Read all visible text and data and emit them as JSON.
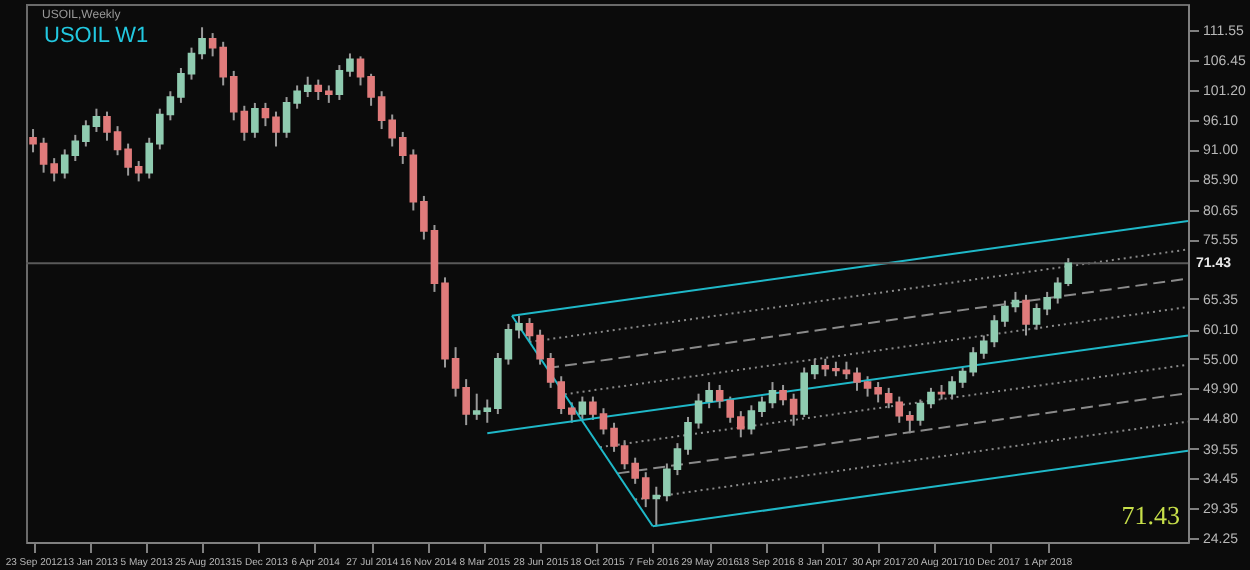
{
  "chart_data": {
    "type": "candlestick",
    "title": "USOIL W1",
    "subtitle": "USOIL,Weekly",
    "annotations": [
      "71.43"
    ],
    "x": [
      "2012-09-23",
      "2012-10-14",
      "2012-11-04",
      "2012-11-25",
      "2012-12-16",
      "2013-01-06",
      "2013-01-27",
      "2013-02-17",
      "2013-03-10",
      "2013-03-31",
      "2013-04-21",
      "2013-05-12",
      "2013-06-02",
      "2013-06-23",
      "2013-07-14",
      "2013-08-04",
      "2013-08-25",
      "2013-09-15",
      "2013-10-06",
      "2013-10-27",
      "2013-11-17",
      "2013-12-08",
      "2013-12-29",
      "2014-01-19",
      "2014-02-09",
      "2014-03-02",
      "2014-03-23",
      "2014-04-13",
      "2014-05-04",
      "2014-05-25",
      "2014-06-15",
      "2014-07-06",
      "2014-07-27",
      "2014-08-17",
      "2014-09-07",
      "2014-09-28",
      "2014-10-19",
      "2014-11-09",
      "2014-11-30",
      "2014-12-21",
      "2015-01-11",
      "2015-02-01",
      "2015-02-22",
      "2015-03-15",
      "2015-04-05",
      "2015-04-26",
      "2015-05-17",
      "2015-06-07",
      "2015-06-28",
      "2015-07-19",
      "2015-08-09",
      "2015-08-30",
      "2015-09-20",
      "2015-10-11",
      "2015-11-01",
      "2015-11-22",
      "2015-12-13",
      "2016-01-03",
      "2016-01-24",
      "2016-02-14",
      "2016-03-06",
      "2016-03-27",
      "2016-04-17",
      "2016-05-08",
      "2016-05-29",
      "2016-06-19",
      "2016-07-10",
      "2016-07-31",
      "2016-08-21",
      "2016-09-11",
      "2016-10-02",
      "2016-10-23",
      "2016-11-13",
      "2016-12-04",
      "2016-12-25",
      "2017-01-15",
      "2017-02-05",
      "2017-02-26",
      "2017-03-19",
      "2017-04-09",
      "2017-04-30",
      "2017-05-21",
      "2017-06-11",
      "2017-07-02",
      "2017-07-23",
      "2017-08-13",
      "2017-09-03",
      "2017-09-24",
      "2017-10-15",
      "2017-11-05",
      "2017-11-26",
      "2017-12-17",
      "2018-01-07",
      "2018-01-28",
      "2018-02-18",
      "2018-03-11",
      "2018-04-01",
      "2018-04-22",
      "2018-05-13"
    ],
    "ohlc": [
      [
        93,
        94.5,
        90.5,
        92
      ],
      [
        92,
        93,
        87,
        88.5
      ],
      [
        88.5,
        89.5,
        85.5,
        87
      ],
      [
        87,
        91,
        86,
        90
      ],
      [
        90,
        93.5,
        89,
        92.4
      ],
      [
        92.4,
        96,
        91.5,
        95
      ],
      [
        95,
        98,
        94,
        96.6
      ],
      [
        96.6,
        97.5,
        92.5,
        94
      ],
      [
        94,
        95,
        90,
        91
      ],
      [
        91,
        92,
        86.5,
        88
      ],
      [
        88,
        89,
        85.5,
        87
      ],
      [
        87,
        93,
        86,
        92
      ],
      [
        92,
        98,
        91,
        97
      ],
      [
        97,
        101,
        96,
        100
      ],
      [
        100,
        105,
        99,
        104
      ],
      [
        104,
        108.5,
        103,
        107.5
      ],
      [
        107.5,
        112,
        106.5,
        110
      ],
      [
        110,
        111,
        107,
        108.5
      ],
      [
        108.5,
        109.5,
        102,
        103.5
      ],
      [
        103.5,
        104.5,
        96,
        97.5
      ],
      [
        97.5,
        98.5,
        92.5,
        94
      ],
      [
        94,
        99,
        93,
        98
      ],
      [
        98,
        99,
        95,
        96.5
      ],
      [
        96.5,
        97.5,
        91.5,
        94
      ],
      [
        94,
        100,
        93,
        99
      ],
      [
        99,
        102,
        98,
        101
      ],
      [
        101,
        103.5,
        100,
        102
      ],
      [
        102,
        103,
        99.5,
        101
      ],
      [
        101,
        102,
        99,
        100.5
      ],
      [
        100.5,
        105.5,
        99.5,
        104.5
      ],
      [
        104.5,
        107.5,
        103.5,
        106.5
      ],
      [
        106.5,
        107,
        102,
        103.5
      ],
      [
        103.5,
        104,
        98.5,
        100
      ],
      [
        100,
        101,
        94.5,
        96
      ],
      [
        96,
        97,
        91.5,
        93
      ],
      [
        93,
        94,
        88.5,
        90
      ],
      [
        90,
        91,
        80.5,
        82
      ],
      [
        82,
        83,
        75.5,
        77
      ],
      [
        77,
        78,
        66.5,
        68
      ],
      [
        68,
        69,
        53.5,
        55
      ],
      [
        55,
        57,
        48.5,
        50
      ],
      [
        50,
        51.5,
        43.6,
        45.5
      ],
      [
        45.5,
        49,
        44.5,
        46
      ],
      [
        46,
        48,
        44,
        46.5
      ],
      [
        46.5,
        56,
        45.5,
        55
      ],
      [
        55,
        61,
        54,
        60
      ],
      [
        60,
        62.4,
        58.5,
        61
      ],
      [
        61,
        62,
        58,
        59
      ],
      [
        59,
        60,
        54,
        55
      ],
      [
        55,
        56,
        50,
        51
      ],
      [
        51,
        52,
        45.5,
        46.5
      ],
      [
        46.5,
        47.5,
        44,
        45.5
      ],
      [
        45.5,
        48.5,
        44.5,
        47.5
      ],
      [
        47.5,
        48.5,
        44.5,
        45.5
      ],
      [
        45.5,
        46.5,
        42,
        43
      ],
      [
        43,
        44,
        39,
        40
      ],
      [
        40,
        41,
        36,
        37
      ],
      [
        37,
        38,
        33.5,
        34.5
      ],
      [
        34.5,
        35.5,
        29.5,
        31
      ],
      [
        31,
        33,
        26.2,
        31.5
      ],
      [
        31.5,
        37,
        30.5,
        36
      ],
      [
        36,
        40.5,
        35,
        39.5
      ],
      [
        39.5,
        45,
        38.5,
        44
      ],
      [
        44,
        49,
        43,
        47.7
      ],
      [
        47.7,
        51,
        46.5,
        49.5
      ],
      [
        49.5,
        50.5,
        46.5,
        47.8
      ],
      [
        47.8,
        48.5,
        44,
        45
      ],
      [
        45,
        46,
        41.5,
        43
      ],
      [
        43,
        47,
        42,
        46
      ],
      [
        46,
        48.5,
        45,
        47.5
      ],
      [
        47.5,
        51,
        46.5,
        49.5
      ],
      [
        49.5,
        50.5,
        47,
        48
      ],
      [
        48,
        49,
        43.5,
        45.5
      ],
      [
        45.5,
        53.5,
        45,
        52.5
      ],
      [
        52.5,
        55,
        51.5,
        53.8
      ],
      [
        53.8,
        55,
        52,
        53.3
      ],
      [
        53.3,
        54.5,
        52,
        53
      ],
      [
        53,
        54.5,
        51.5,
        52.5
      ],
      [
        52.5,
        53.5,
        49.5,
        51
      ],
      [
        51,
        52,
        48.5,
        50
      ],
      [
        50,
        51,
        47.5,
        49
      ],
      [
        49,
        50,
        46.5,
        47.5
      ],
      [
        47.5,
        48.5,
        44,
        45.2
      ],
      [
        45.2,
        46,
        42.2,
        44.5
      ],
      [
        44.5,
        48,
        43.5,
        47.3
      ],
      [
        47.3,
        50,
        46.5,
        49.2
      ],
      [
        49.2,
        50.5,
        48,
        49
      ],
      [
        49,
        52,
        48,
        51
      ],
      [
        51,
        53.5,
        50,
        52.8
      ],
      [
        52.8,
        57,
        52,
        56
      ],
      [
        56,
        59,
        55,
        58
      ],
      [
        58,
        62.5,
        57,
        61.5
      ],
      [
        61.5,
        65,
        60.5,
        64
      ],
      [
        64,
        66.5,
        63,
        65
      ],
      [
        65,
        66,
        59,
        61
      ],
      [
        61,
        64.5,
        60,
        63.6
      ],
      [
        63.6,
        66.5,
        62.5,
        65.5
      ],
      [
        65.5,
        69,
        64.5,
        68
      ],
      [
        68,
        72.3,
        67.5,
        71.43
      ]
    ],
    "series": [
      {
        "type": "line",
        "color": "#1fb8c8",
        "line_style": "solid",
        "x": [
          "2015-05-03",
          "2019-01-06"
        ],
        "values": [
          62.4,
          78.7
        ]
      },
      {
        "type": "line",
        "color": "#8a8a8a",
        "line_style": "dotted",
        "x": [
          "2015-06-07",
          "2019-01-06"
        ],
        "values": [
          57.9,
          73.8
        ]
      },
      {
        "type": "line",
        "color": "#8a8a8a",
        "line_style": "dashed",
        "x": [
          "2015-07-12",
          "2019-01-06"
        ],
        "values": [
          53.4,
          68.8
        ]
      },
      {
        "type": "line",
        "color": "#8a8a8a",
        "line_style": "dotted",
        "x": [
          "2015-08-16",
          "2019-01-06"
        ],
        "values": [
          48.9,
          63.9
        ]
      },
      {
        "type": "line",
        "color": "#1fb8c8",
        "line_style": "solid",
        "x": [
          "2015-03-15",
          "2019-01-06"
        ],
        "values": [
          42.2,
          59.0
        ]
      },
      {
        "type": "line",
        "color": "#8a8a8a",
        "line_style": "dotted",
        "x": [
          "2015-10-25",
          "2019-01-06"
        ],
        "values": [
          39.8,
          54.0
        ]
      },
      {
        "type": "line",
        "color": "#8a8a8a",
        "line_style": "dashed",
        "x": [
          "2015-11-29",
          "2019-01-06"
        ],
        "values": [
          35.3,
          49.1
        ]
      },
      {
        "type": "line",
        "color": "#8a8a8a",
        "line_style": "dotted",
        "x": [
          "2016-01-03",
          "2019-01-06"
        ],
        "values": [
          30.8,
          44.2
        ]
      },
      {
        "type": "line",
        "color": "#1fb8c8",
        "line_style": "solid",
        "x": [
          "2016-02-07",
          "2019-01-06"
        ],
        "values": [
          26.2,
          39.2
        ]
      },
      {
        "type": "line",
        "color": "#1fb8c8",
        "line_style": "solid",
        "x": [
          "2015-05-03",
          "2016-02-07"
        ],
        "values": [
          62.4,
          26.2
        ]
      }
    ],
    "ref_lines": [
      {
        "axis": "y",
        "value": 71.43,
        "label": "71.43",
        "color": "#5a5a5a"
      }
    ],
    "xlim": [
      "2012-09-09",
      "2019-01-06"
    ],
    "xticks": [
      {
        "value": "2012-09-23",
        "label": "23 Sep 2012"
      },
      {
        "value": "2013-01-13",
        "label": "13 Jan 2013"
      },
      {
        "value": "2013-05-05",
        "label": "5 May 2013"
      },
      {
        "value": "2013-08-25",
        "label": "25 Aug 2013"
      },
      {
        "value": "2013-12-15",
        "label": "15 Dec 2013"
      },
      {
        "value": "2014-04-06",
        "label": "6 Apr 2014"
      },
      {
        "value": "2014-07-27",
        "label": "27 Jul 2014"
      },
      {
        "value": "2014-11-16",
        "label": "16 Nov 2014"
      },
      {
        "value": "2015-03-08",
        "label": "8 Mar 2015"
      },
      {
        "value": "2015-06-28",
        "label": "28 Jun 2015"
      },
      {
        "value": "2015-10-18",
        "label": "18 Oct 2015"
      },
      {
        "value": "2016-02-07",
        "label": "7 Feb 2016"
      },
      {
        "value": "2016-05-29",
        "label": "29 May 2016"
      },
      {
        "value": "2016-09-18",
        "label": "18 Sep 2016"
      },
      {
        "value": "2017-01-08",
        "label": "8 Jan 2017"
      },
      {
        "value": "2017-04-30",
        "label": "30 Apr 2017"
      },
      {
        "value": "2017-08-20",
        "label": "20 Aug 2017"
      },
      {
        "value": "2017-12-10",
        "label": "10 Dec 2017"
      },
      {
        "value": "2018-04-01",
        "label": "1 Apr 2018"
      }
    ],
    "ylim": [
      23.5,
      116
    ],
    "yticks": [
      {
        "value": 111.55,
        "label": "111.55"
      },
      {
        "value": 106.45,
        "label": "106.45"
      },
      {
        "value": 101.2,
        "label": "101.20"
      },
      {
        "value": 96.1,
        "label": "96.10"
      },
      {
        "value": 91.0,
        "label": "91.00"
      },
      {
        "value": 85.9,
        "label": "85.90"
      },
      {
        "value": 80.65,
        "label": "80.65"
      },
      {
        "value": 75.55,
        "label": "75.55"
      },
      {
        "value": 65.35,
        "label": "65.35"
      },
      {
        "value": 60.1,
        "label": "60.10"
      },
      {
        "value": 55.0,
        "label": "55.00"
      },
      {
        "value": 49.9,
        "label": "49.90"
      },
      {
        "value": 44.8,
        "label": "44.80"
      },
      {
        "value": 39.55,
        "label": "39.55"
      },
      {
        "value": 34.45,
        "label": "34.45"
      },
      {
        "value": 29.35,
        "label": "29.35"
      },
      {
        "value": 24.25,
        "label": "24.25"
      }
    ],
    "grid": false
  }
}
